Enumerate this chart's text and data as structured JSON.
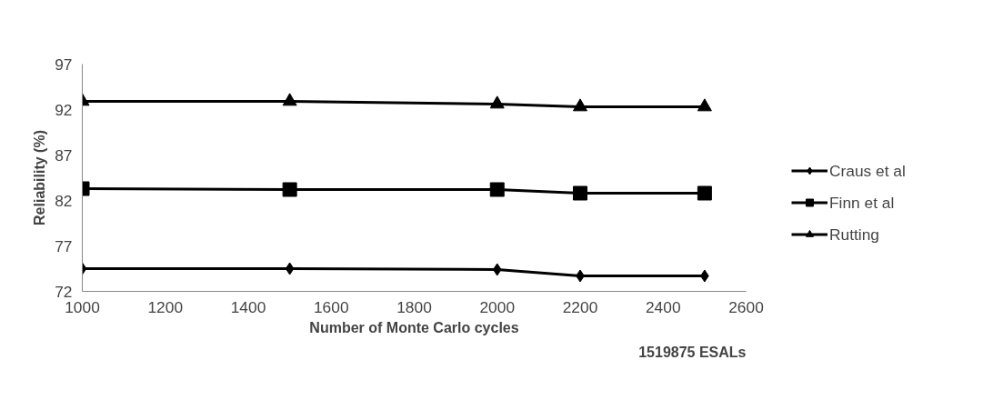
{
  "chart_data": {
    "type": "line",
    "xlabel": "Number of Monte Carlo cycles",
    "ylabel": "Reliability (%)",
    "x": [
      1000,
      1500,
      2000,
      2200,
      2500
    ],
    "series": [
      {
        "name": "Craus et al",
        "color": "#000000",
        "marker": "diamond",
        "values": [
          74.5,
          74.5,
          74.4,
          73.7,
          73.7
        ]
      },
      {
        "name": "Finn et al",
        "color": "#000000",
        "marker": "square",
        "values": [
          83.3,
          83.2,
          83.2,
          82.8,
          82.8
        ]
      },
      {
        "name": "Rutting",
        "color": "#000000",
        "marker": "triangle",
        "values": [
          92.9,
          92.9,
          92.6,
          92.3,
          92.3
        ]
      }
    ],
    "xlim": [
      1000,
      2600
    ],
    "xticks": [
      1000,
      1200,
      1400,
      1600,
      1800,
      2000,
      2200,
      2400,
      2600
    ],
    "ylim": [
      72,
      97
    ],
    "yticks": [
      72,
      77,
      82,
      87,
      92,
      97
    ],
    "grid": false,
    "legend": "right",
    "line_style": "solid",
    "annotations": [
      "1519875 ESALs"
    ]
  }
}
